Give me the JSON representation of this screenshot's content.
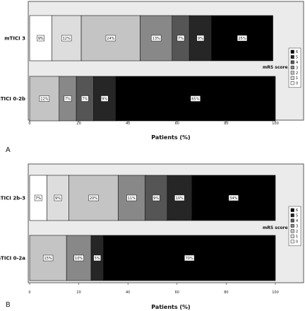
{
  "chart_data": [
    {
      "type": "bar",
      "orientation": "horizontal",
      "stacked": true,
      "panel_label": "A",
      "xlabel": "Patients (%)",
      "xlim": [
        0,
        100
      ],
      "xticks": [
        0,
        20,
        40,
        60,
        80,
        100
      ],
      "legend_title": "mRS score",
      "legend_position": "right",
      "categories": [
        "mTICI 3",
        "mTICI 0-2b"
      ],
      "series": [
        {
          "name": "0",
          "color": "#ffffff",
          "values": [
            9,
            0
          ]
        },
        {
          "name": "1",
          "color": "#dddddd",
          "values": [
            12,
            0
          ]
        },
        {
          "name": "2",
          "color": "#c4c4c4",
          "values": [
            24,
            12
          ]
        },
        {
          "name": "3",
          "color": "#888888",
          "values": [
            13,
            7
          ]
        },
        {
          "name": "4",
          "color": "#555555",
          "values": [
            7,
            7
          ]
        },
        {
          "name": "5",
          "color": "#262626",
          "values": [
            9,
            9
          ]
        },
        {
          "name": "6",
          "color": "#000000",
          "values": [
            25,
            65
          ]
        }
      ],
      "segment_labels": [
        [
          "9%",
          "12%",
          "24%",
          "13%",
          "7%",
          "9%",
          "25%"
        ],
        [
          "",
          "",
          "12%",
          "7%",
          "7%",
          "9%",
          "65%"
        ]
      ]
    },
    {
      "type": "bar",
      "orientation": "horizontal",
      "stacked": true,
      "panel_label": "B",
      "xlabel": "Patients (%)",
      "xlim": [
        0,
        100
      ],
      "xticks": [
        0,
        20,
        40,
        60,
        80,
        100
      ],
      "legend_title": "mRS score",
      "legend_position": "right",
      "categories": [
        "mTICI 2b-3",
        "mTICI 0-2a"
      ],
      "series": [
        {
          "name": "0",
          "color": "#ffffff",
          "values": [
            7,
            0
          ]
        },
        {
          "name": "1",
          "color": "#dddddd",
          "values": [
            9,
            0
          ]
        },
        {
          "name": "2",
          "color": "#c4c4c4",
          "values": [
            20,
            15
          ]
        },
        {
          "name": "3",
          "color": "#888888",
          "values": [
            11,
            10
          ]
        },
        {
          "name": "4",
          "color": "#555555",
          "values": [
            9,
            0
          ]
        },
        {
          "name": "5",
          "color": "#262626",
          "values": [
            10,
            5
          ]
        },
        {
          "name": "6",
          "color": "#000000",
          "values": [
            34,
            70
          ]
        }
      ],
      "segment_labels": [
        [
          "7%",
          "9%",
          "20%",
          "11%",
          "9%",
          "10%",
          "34%"
        ],
        [
          "",
          "",
          "15%",
          "10%",
          "",
          "5%",
          "70%"
        ]
      ]
    }
  ]
}
